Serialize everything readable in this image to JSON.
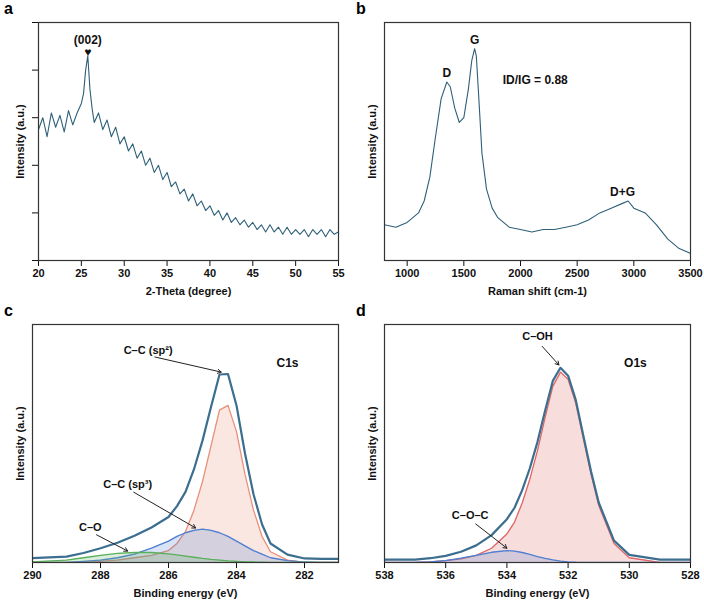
{
  "chart_data": [
    {
      "panel": "a",
      "type": "line",
      "xlabel": "2-Theta (degree)",
      "ylabel": "Intensity (a.u.)",
      "x": [
        20,
        20.5,
        21,
        21.5,
        22,
        22.5,
        23,
        23.5,
        24,
        24.5,
        25,
        25.25,
        25.5,
        25.75,
        26,
        26.25,
        26.5,
        27,
        27.5,
        28,
        28.5,
        29,
        29.5,
        30,
        30.5,
        31,
        31.5,
        32,
        32.5,
        33,
        33.5,
        34,
        34.5,
        35,
        35.5,
        36,
        36.5,
        37,
        37.5,
        38,
        38.5,
        39,
        39.5,
        40,
        40.5,
        41,
        41.5,
        42,
        42.5,
        43,
        43.5,
        44,
        44.5,
        45,
        45.5,
        46,
        46.5,
        47,
        47.5,
        48,
        48.5,
        49,
        49.5,
        50,
        50.5,
        51,
        51.5,
        52,
        52.5,
        53,
        53.5,
        54,
        54.5,
        55
      ],
      "series": [
        {
          "color": "#2e6079",
          "values": [
            55,
            60,
            52,
            62,
            56,
            61,
            54,
            63,
            57,
            62,
            66,
            70,
            80,
            86,
            72,
            64,
            58,
            62,
            55,
            59,
            52,
            56,
            49,
            52,
            46,
            49,
            43,
            46,
            40,
            43,
            37,
            40,
            34,
            37,
            31,
            33,
            28,
            30,
            25,
            28,
            23,
            25,
            21,
            23,
            19,
            21,
            17,
            20,
            16,
            18,
            15,
            17,
            14,
            16,
            13,
            15,
            12,
            15,
            12,
            14,
            11,
            14,
            11,
            13,
            11,
            13,
            10,
            13,
            11,
            13,
            10,
            13,
            11,
            12
          ]
        }
      ],
      "xlim": [
        20,
        55
      ],
      "xticks": [
        20,
        25,
        30,
        35,
        40,
        45,
        50,
        55
      ],
      "ylim": [
        0,
        100
      ],
      "yticks": [
        0,
        20,
        40,
        60,
        80,
        100
      ],
      "tick_labels": "x",
      "annotations": [
        {
          "text": "(002)\n♥",
          "x": 25.75,
          "y": 86
        }
      ]
    },
    {
      "panel": "b",
      "type": "line",
      "xlabel": "Raman shift (cm-1)",
      "ylabel": "Intensity (a.u.)",
      "x": [
        800,
        900,
        1000,
        1100,
        1150,
        1200,
        1250,
        1300,
        1350,
        1380,
        1420,
        1460,
        1500,
        1540,
        1570,
        1595,
        1610,
        1630,
        1660,
        1700,
        1750,
        1800,
        1900,
        2000,
        2100,
        2200,
        2300,
        2400,
        2500,
        2600,
        2700,
        2800,
        2900,
        2950,
        3000,
        3100,
        3200,
        3300,
        3400,
        3500
      ],
      "series": [
        {
          "color": "#2e6079",
          "values": [
            15,
            14,
            16,
            20,
            25,
            35,
            52,
            68,
            75,
            73,
            64,
            58,
            60,
            72,
            84,
            89,
            86,
            70,
            45,
            30,
            22,
            18,
            14,
            13,
            12,
            13,
            13,
            14,
            15,
            17,
            20,
            22,
            24,
            25,
            22,
            20,
            15,
            9,
            5,
            3
          ]
        }
      ],
      "xlim": [
        800,
        3500
      ],
      "xticks": [
        1000,
        1500,
        2000,
        2500,
        3000,
        3500
      ],
      "ylim": [
        0,
        100
      ],
      "tick_labels": "x",
      "annotations": [
        {
          "text": "D",
          "x": 1350,
          "y": 77
        },
        {
          "text": "G",
          "x": 1595,
          "y": 91
        },
        {
          "text": "ID/IG = 0.88",
          "x": 2130,
          "y": 74
        },
        {
          "text": "D+G",
          "x": 2900,
          "y": 27
        }
      ]
    },
    {
      "panel": "c",
      "type": "line",
      "xlabel": "Binding energy (eV)",
      "ylabel": "Intensity (a.u.)",
      "x": [
        290,
        289,
        288.5,
        288,
        287.5,
        287,
        286.5,
        286,
        285.75,
        285.5,
        285.25,
        285,
        284.75,
        284.5,
        284.25,
        284,
        283.75,
        283.5,
        283.25,
        283,
        282.5,
        282,
        281.5,
        281
      ],
      "series": [
        {
          "type": "area",
          "color": "#e8907a",
          "values": [
            0,
            0,
            0,
            0.5,
            1,
            2,
            3,
            5,
            8,
            13,
            22,
            34,
            49,
            64,
            66,
            55,
            37,
            22,
            11,
            4.5,
            1,
            0,
            0,
            0
          ]
        },
        {
          "type": "area",
          "color": "#4f7fd0",
          "values": [
            0,
            0,
            0.5,
            1,
            2,
            3.5,
            6,
            9,
            11,
            12.5,
            13.5,
            14,
            13.5,
            12.5,
            11,
            9,
            7,
            5,
            3.5,
            2,
            0.8,
            0.2,
            0,
            0
          ]
        },
        {
          "type": "area",
          "color": "#5ab05a",
          "values": [
            0.3,
            1,
            2,
            3,
            3.8,
            4.2,
            4.2,
            3.6,
            3.2,
            2.7,
            2.2,
            1.7,
            1.3,
            1,
            0.7,
            0.5,
            0.3,
            0.2,
            0.1,
            0,
            0,
            0,
            0,
            0
          ]
        },
        {
          "color": "#3b6e8f",
          "values": [
            1.8,
            2.5,
            4,
            6,
            8.3,
            11.2,
            14.7,
            19.1,
            23.7,
            29.7,
            39.2,
            51.2,
            65.3,
            79,
            79.2,
            66,
            45.8,
            28.7,
            16.1,
            8,
            3.3,
            1.7,
            1.5,
            1.5
          ]
        }
      ],
      "xlim": [
        290,
        281
      ],
      "xticks": [
        290,
        288,
        286,
        284,
        282
      ],
      "ylim": [
        0,
        100
      ],
      "tick_labels": "x",
      "annotations": [
        {
          "text": "C–C (sp²)",
          "x": 286.6,
          "y": 87,
          "arrow_to": [
            284.45,
            80
          ]
        },
        {
          "text": "C–C (sp³)",
          "x": 287.2,
          "y": 31,
          "arrow_to": [
            285.2,
            14.5
          ]
        },
        {
          "text": "C–O",
          "x": 288.3,
          "y": 13,
          "arrow_to": [
            287.2,
            4.8
          ]
        },
        {
          "text": "C1s",
          "x": 282.5,
          "y": 82
        }
      ]
    },
    {
      "panel": "d",
      "type": "line",
      "xlabel": "Binding energy (eV)",
      "ylabel": "Intensity (a.u.)",
      "x": [
        538,
        537,
        536.5,
        536,
        535.5,
        535,
        534.5,
        534,
        533.75,
        533.5,
        533.25,
        533,
        532.75,
        532.5,
        532.25,
        532,
        531.75,
        531.5,
        531.25,
        531,
        530.5,
        530,
        529,
        528
      ],
      "series": [
        {
          "type": "area",
          "color": "#e06666",
          "values": [
            0,
            0,
            0.3,
            0.8,
            1.5,
            3,
            6,
            12,
            17,
            25,
            35,
            47,
            61,
            74,
            80,
            77,
            67,
            52,
            37,
            24,
            8,
            2,
            0,
            0
          ]
        },
        {
          "type": "area",
          "color": "#4f7fd0",
          "values": [
            0,
            0,
            0.3,
            0.8,
            1.8,
            3,
            4.3,
            5,
            4.8,
            4.2,
            3.4,
            2.5,
            1.7,
            1.1,
            0.6,
            0.3,
            0.1,
            0,
            0,
            0,
            0,
            0,
            0,
            0
          ]
        },
        {
          "color": "#3b6e8f",
          "values": [
            1.2,
            1.2,
            1.8,
            2.8,
            4.5,
            7.2,
            11.5,
            18.2,
            23,
            30.4,
            39.6,
            50.7,
            63.9,
            76.3,
            81.8,
            78.5,
            68.3,
            53.2,
            38.2,
            25.2,
            9.2,
            3.2,
            1.2,
            1.2
          ]
        }
      ],
      "xlim": [
        538,
        528
      ],
      "xticks": [
        538,
        536,
        534,
        532,
        530,
        528
      ],
      "ylim": [
        0,
        100
      ],
      "tick_labels": "x",
      "annotations": [
        {
          "text": "C–OH",
          "x": 533.0,
          "y": 93,
          "arrow_to": [
            532.3,
            83
          ]
        },
        {
          "text": "C–O–C",
          "x": 535.2,
          "y": 18,
          "arrow_to": [
            534.0,
            6
          ]
        },
        {
          "text": "O1s",
          "x": 529.8,
          "y": 82
        }
      ]
    }
  ]
}
